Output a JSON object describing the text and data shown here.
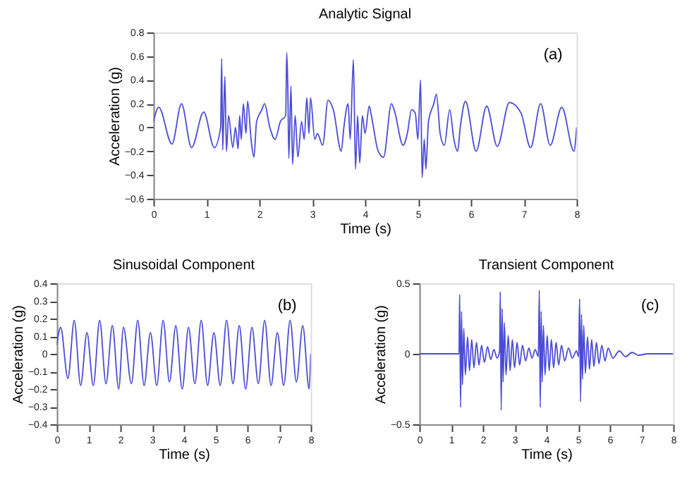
{
  "chart_data": [
    {
      "type": "line",
      "title": "Analytic Signal",
      "xlabel": "Time (s)",
      "ylabel": "Acceleration (g)",
      "annotations": [
        "(a)"
      ],
      "xlim": [
        0,
        8
      ],
      "xticks": [
        0,
        1,
        2,
        3,
        4,
        5,
        6,
        7,
        8
      ],
      "ylim": [
        -0.6,
        0.8
      ],
      "yticks": [
        -0.6,
        -0.4,
        -0.2,
        0,
        0.2,
        0.4,
        0.6,
        0.8
      ],
      "grid": false,
      "marker": "none",
      "line_style": "solid",
      "series": [
        {
          "color": "#4b4bd8",
          "x": [
            0,
            0.1,
            0.35,
            0.53,
            0.72,
            0.95,
            1.15,
            1.27,
            1.29,
            1.31,
            1.35,
            1.38,
            1.42,
            1.5,
            1.55,
            1.6,
            1.63,
            1.66,
            1.7,
            1.75,
            1.78,
            1.85,
            1.9,
            1.95,
            2.05,
            2.1,
            2.2,
            2.3,
            2.4,
            2.5,
            2.52,
            2.54,
            2.56,
            2.6,
            2.63,
            2.68,
            2.73,
            2.8,
            2.85,
            2.9,
            2.94,
            2.97,
            3.05,
            3.1,
            3.2,
            3.3,
            3.4,
            3.55,
            3.6,
            3.68,
            3.72,
            3.78,
            3.82,
            3.86,
            3.9,
            3.95,
            4.0,
            4.08,
            4.12,
            4.25,
            4.35,
            4.5,
            4.55,
            4.72,
            4.8,
            4.88,
            4.95,
            5.0,
            5.05,
            5.08,
            5.12,
            5.15,
            5.2,
            5.3,
            5.35,
            5.42,
            5.5,
            5.6,
            5.68,
            5.75,
            5.8,
            5.9,
            6.1,
            6.3,
            6.5,
            6.73,
            6.95,
            7.13,
            7.32,
            7.5,
            7.72,
            7.95,
            8
          ],
          "values": [
            0.05,
            0.17,
            -0.14,
            0.2,
            -0.17,
            0.13,
            -0.17,
            0.0,
            0.58,
            -0.19,
            0.43,
            -0.2,
            0.1,
            -0.17,
            0.0,
            -0.18,
            0.1,
            -0.1,
            0.2,
            -0.05,
            0.22,
            -0.12,
            -0.25,
            0.05,
            0.15,
            0.2,
            0.0,
            -0.1,
            0.05,
            0.1,
            0.63,
            0.35,
            -0.26,
            0.35,
            -0.31,
            0.1,
            -0.25,
            0.05,
            -0.1,
            0.25,
            -0.05,
            0.25,
            -0.1,
            -0.05,
            -0.15,
            0.23,
            0.15,
            -0.2,
            0.0,
            0.2,
            -0.1,
            0.57,
            -0.35,
            0.1,
            -0.3,
            0.1,
            -0.05,
            0.18,
            0.1,
            -0.2,
            -0.25,
            0.2,
            0.15,
            -0.15,
            -0.05,
            0.15,
            0.12,
            -0.1,
            0.4,
            -0.42,
            -0.1,
            -0.35,
            0.05,
            0.2,
            0.28,
            -0.05,
            -0.15,
            0.15,
            -0.1,
            -0.2,
            0.0,
            0.22,
            -0.2,
            0.18,
            -0.16,
            0.21,
            0.12,
            -0.17,
            0.2,
            -0.15,
            0.17,
            -0.2,
            0.0
          ]
        }
      ]
    },
    {
      "type": "line",
      "title": "Sinusoidal Component",
      "xlabel": "Time (s)",
      "ylabel": "Acceleration (g)",
      "annotations": [
        "(b)"
      ],
      "xlim": [
        0,
        8
      ],
      "xticks": [
        0,
        1,
        2,
        3,
        4,
        5,
        6,
        7,
        8
      ],
      "ylim": [
        -0.4,
        0.4
      ],
      "yticks": [
        -0.4,
        -0.3,
        -0.2,
        -0.1,
        0,
        0.1,
        0.2,
        0.3,
        0.4
      ],
      "grid": false,
      "marker": "none",
      "line_style": "solid",
      "series": [
        {
          "color": "#4b4bd8",
          "x": [
            0,
            0.12,
            0.35,
            0.55,
            0.75,
            0.95,
            1.15,
            1.35,
            1.55,
            1.75,
            1.95,
            2.1,
            2.35,
            2.55,
            2.75,
            2.95,
            3.15,
            3.35,
            3.55,
            3.75,
            3.95,
            4.15,
            4.35,
            4.55,
            4.75,
            4.95,
            5.15,
            5.35,
            5.55,
            5.75,
            5.95,
            6.15,
            6.35,
            6.55,
            6.75,
            6.95,
            7.15,
            7.35,
            7.55,
            7.75,
            7.95,
            8
          ],
          "values": [
            0.05,
            0.15,
            -0.14,
            0.19,
            -0.18,
            0.12,
            -0.18,
            0.19,
            -0.17,
            0.16,
            -0.2,
            0.15,
            -0.17,
            0.19,
            -0.18,
            0.12,
            -0.18,
            0.19,
            -0.16,
            0.16,
            -0.2,
            0.15,
            -0.17,
            0.19,
            -0.18,
            0.12,
            -0.18,
            0.19,
            -0.17,
            0.16,
            -0.2,
            0.15,
            -0.17,
            0.19,
            -0.18,
            0.12,
            -0.18,
            0.19,
            -0.16,
            0.16,
            -0.2,
            0.0
          ]
        }
      ]
    },
    {
      "type": "line",
      "title": "Transient Component",
      "xlabel": "Time (s)",
      "ylabel": "Acceleration (g)",
      "annotations": [
        "(c)"
      ],
      "xlim": [
        0,
        8
      ],
      "xticks": [
        0,
        1,
        2,
        3,
        4,
        5,
        6,
        7,
        8
      ],
      "ylim": [
        -0.5,
        0.5
      ],
      "yticks": [
        -0.5,
        0,
        0.5
      ],
      "grid": false,
      "marker": "none",
      "line_style": "solid",
      "series": [
        {
          "color": "#4b4bd8",
          "x": [
            0,
            1.25,
            1.27,
            1.3,
            1.33,
            1.36,
            1.4,
            1.45,
            1.52,
            1.58,
            1.65,
            1.72,
            1.8,
            1.88,
            1.96,
            2.05,
            2.15,
            2.25,
            2.35,
            2.45,
            2.53,
            2.55,
            2.58,
            2.61,
            2.64,
            2.68,
            2.73,
            2.8,
            2.86,
            2.93,
            3.0,
            3.08,
            3.16,
            3.25,
            3.35,
            3.45,
            3.55,
            3.65,
            3.75,
            3.78,
            3.81,
            3.84,
            3.87,
            3.91,
            3.96,
            4.03,
            4.09,
            4.16,
            4.23,
            4.31,
            4.39,
            4.48,
            4.58,
            4.7,
            4.82,
            4.95,
            5.02,
            5.05,
            5.08,
            5.11,
            5.14,
            5.18,
            5.23,
            5.3,
            5.36,
            5.43,
            5.5,
            5.58,
            5.66,
            5.75,
            5.85,
            5.95,
            6.1,
            6.3,
            6.5,
            6.7,
            6.9,
            7.2,
            8
          ],
          "values": [
            0,
            0,
            0.42,
            -0.38,
            0.3,
            -0.22,
            0.18,
            -0.15,
            0.12,
            -0.12,
            0.1,
            -0.1,
            0.08,
            -0.08,
            0.06,
            -0.06,
            0.05,
            -0.04,
            0.03,
            -0.03,
            0.02,
            0.44,
            -0.4,
            0.32,
            -0.2,
            0.22,
            -0.15,
            0.13,
            -0.12,
            0.1,
            -0.1,
            0.08,
            -0.08,
            0.06,
            -0.05,
            0.04,
            -0.03,
            0.03,
            -0.02,
            0.45,
            -0.38,
            0.3,
            -0.2,
            0.2,
            -0.15,
            0.13,
            -0.12,
            0.1,
            -0.1,
            0.08,
            -0.08,
            0.06,
            -0.05,
            0.04,
            -0.03,
            0.02,
            -0.02,
            0.39,
            -0.34,
            0.28,
            -0.18,
            0.2,
            -0.14,
            0.12,
            -0.11,
            0.1,
            -0.09,
            0.08,
            -0.07,
            0.06,
            -0.05,
            0.04,
            -0.03,
            0.02,
            -0.02,
            0.01,
            -0.01,
            0,
            0
          ]
        }
      ]
    }
  ]
}
